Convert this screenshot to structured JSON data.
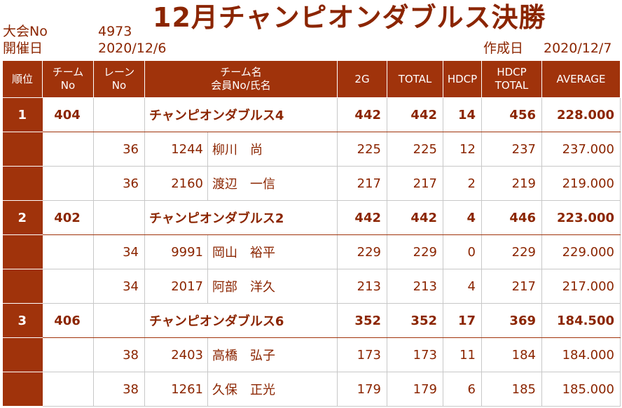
{
  "header": {
    "tournament_no_label": "大会No",
    "tournament_no": "4973",
    "date_label": "開催日",
    "date": "2020/12/6",
    "title": "12月チャンピオンダブルス決勝",
    "created_label": "作成日",
    "created_date": "2020/12/7"
  },
  "columns": {
    "rank": "順位",
    "team_no_1": "チーム",
    "team_no_2": "No",
    "lane_1": "レーン",
    "lane_2": "No",
    "name_1": "チーム名",
    "name_2": "会員No/氏名",
    "g2": "2G",
    "total": "TOTAL",
    "hdcp": "HDCP",
    "hdcp_total_1": "HDCP",
    "hdcp_total_2": "TOTAL",
    "average": "AVERAGE"
  },
  "teams": [
    {
      "rank": "1",
      "team_no": "404",
      "name": "チャンピオンダブルス4",
      "g2": "442",
      "total": "442",
      "hdcp": "14",
      "hdcp_total": "456",
      "average": "228.000",
      "members": [
        {
          "lane": "36",
          "member_no": "1244",
          "name": "柳川　尚",
          "g2": "225",
          "total": "225",
          "hdcp": "12",
          "hdcp_total": "237",
          "average": "237.000"
        },
        {
          "lane": "36",
          "member_no": "2160",
          "name": "渡辺　一信",
          "g2": "217",
          "total": "217",
          "hdcp": "2",
          "hdcp_total": "219",
          "average": "219.000"
        }
      ]
    },
    {
      "rank": "2",
      "team_no": "402",
      "name": "チャンピオンダブルス2",
      "g2": "442",
      "total": "442",
      "hdcp": "4",
      "hdcp_total": "446",
      "average": "223.000",
      "members": [
        {
          "lane": "34",
          "member_no": "9991",
          "name": "岡山　裕平",
          "g2": "229",
          "total": "229",
          "hdcp": "0",
          "hdcp_total": "229",
          "average": "229.000"
        },
        {
          "lane": "34",
          "member_no": "2017",
          "name": "阿部　洋久",
          "g2": "213",
          "total": "213",
          "hdcp": "4",
          "hdcp_total": "217",
          "average": "217.000"
        }
      ]
    },
    {
      "rank": "3",
      "team_no": "406",
      "name": "チャンピオンダブルス6",
      "g2": "352",
      "total": "352",
      "hdcp": "17",
      "hdcp_total": "369",
      "average": "184.500",
      "members": [
        {
          "lane": "38",
          "member_no": "2403",
          "name": "高橋　弘子",
          "g2": "173",
          "total": "173",
          "hdcp": "11",
          "hdcp_total": "184",
          "average": "184.000"
        },
        {
          "lane": "38",
          "member_no": "1261",
          "name": "久保　正光",
          "g2": "179",
          "total": "179",
          "hdcp": "6",
          "hdcp_total": "185",
          "average": "185.000"
        }
      ]
    }
  ]
}
